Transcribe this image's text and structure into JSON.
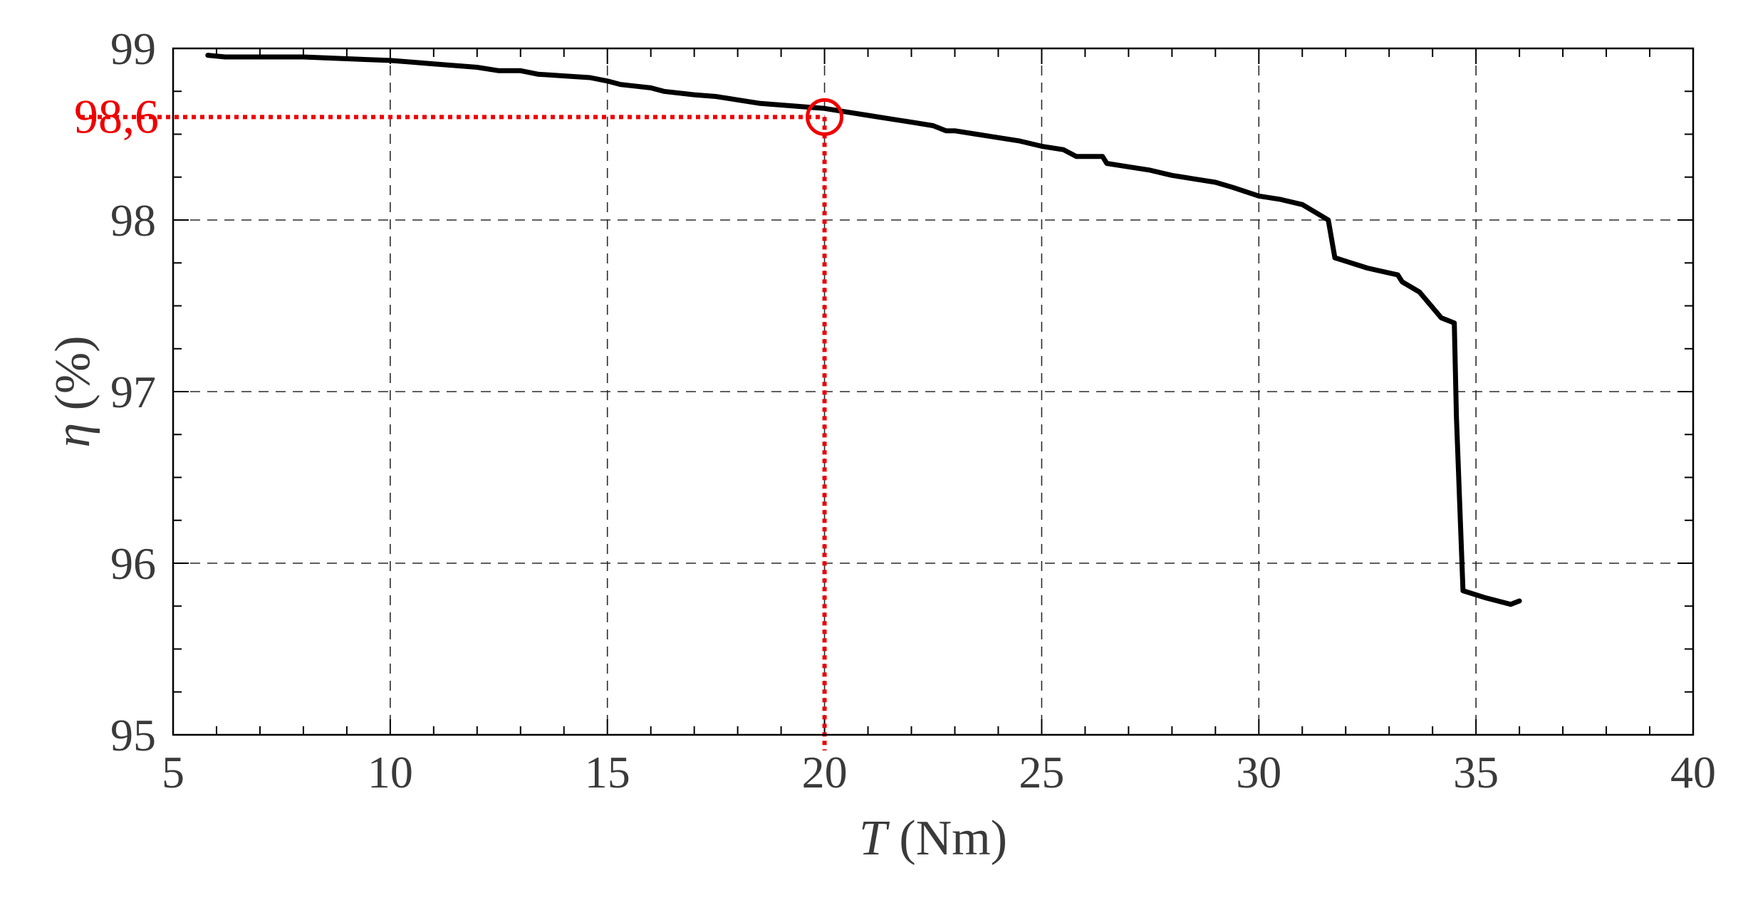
{
  "chart_data": {
    "type": "line",
    "xlabel": {
      "symbol": "T",
      "unit": " (Nm)"
    },
    "ylabel": {
      "symbol": "η",
      "unit": " (%)"
    },
    "xlim": [
      5,
      40
    ],
    "ylim": [
      95,
      99
    ],
    "xticks": [
      5,
      10,
      15,
      20,
      25,
      30,
      35,
      40
    ],
    "yticks": [
      95,
      96,
      97,
      98,
      99
    ],
    "x_minor_step": 1,
    "y_minor_step": 0.25,
    "grid": true,
    "series": [
      {
        "color": "#000000",
        "x": [
          5.8,
          6.2,
          7,
          8,
          9,
          10,
          10.5,
          11,
          11.5,
          12,
          12.5,
          13,
          13.4,
          14,
          14.6,
          15,
          15.3,
          16,
          16.3,
          17,
          17.5,
          18,
          18.5,
          19,
          19.5,
          20,
          20.5,
          21,
          21.5,
          22,
          22.5,
          22.8,
          23,
          23.5,
          24,
          24.5,
          25,
          25.5,
          25.8,
          26,
          26.4,
          26.5,
          27,
          27.5,
          28,
          28.5,
          29,
          29.4,
          30,
          30.5,
          31,
          31.6,
          31.75,
          32,
          32.5,
          33.2,
          33.3,
          33.7,
          34.2,
          34.5,
          34.55,
          34.7,
          35.2,
          35.8,
          36
        ],
        "y": [
          98.96,
          98.95,
          98.95,
          98.95,
          98.94,
          98.93,
          98.92,
          98.91,
          98.9,
          98.89,
          98.87,
          98.87,
          98.85,
          98.84,
          98.83,
          98.81,
          98.79,
          98.77,
          98.75,
          98.73,
          98.72,
          98.7,
          98.68,
          98.67,
          98.66,
          98.65,
          98.63,
          98.61,
          98.59,
          98.57,
          98.55,
          98.52,
          98.52,
          98.5,
          98.48,
          98.46,
          98.43,
          98.41,
          98.37,
          98.37,
          98.37,
          98.33,
          98.31,
          98.29,
          98.26,
          98.24,
          98.22,
          98.19,
          98.14,
          98.12,
          98.09,
          98.0,
          97.78,
          97.76,
          97.72,
          97.68,
          97.64,
          97.58,
          97.43,
          97.4,
          96.85,
          95.84,
          95.8,
          95.76,
          95.78
        ]
      }
    ],
    "highlight": {
      "x": 20,
      "y": 98.6,
      "label": "98,6",
      "color": "#ee0000"
    }
  }
}
